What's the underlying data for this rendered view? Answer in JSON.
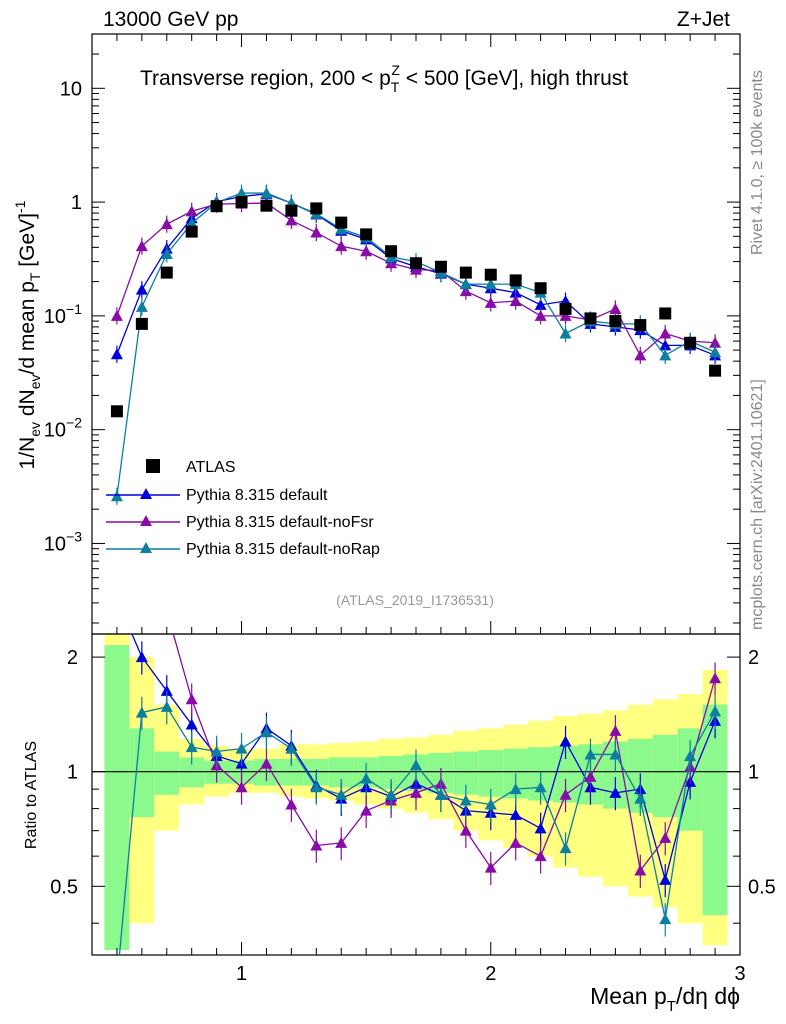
{
  "header": {
    "left": "13000 GeV pp",
    "right": "Z+Jet"
  },
  "side_labels": {
    "rivet": "Rivet 4.1.0, ≥ 100k events",
    "mcplots": "mcplots.cern.ch [arXiv:2401.10621]"
  },
  "analysis_id": "(ATLAS_2019_I1736531)",
  "title": {
    "pre": "Transverse region, 200 < p",
    "sub": "T",
    "sup": "Z",
    "post": " < 500 [GeV], high thrust"
  },
  "ylabel_main": {
    "p1": "1/N",
    "s1": "ev",
    "p2": " dN",
    "s2": "ev",
    "p3": "/d mean p",
    "s3": "T",
    "p4": " [GeV]",
    "sup": "-1"
  },
  "ylabel_ratio": "Ratio to ATLAS",
  "xlabel": {
    "p1": "Mean p",
    "sub": "T",
    "p2": "/dη dϕ"
  },
  "legend": [
    {
      "label": "ATLAS",
      "color": "#000000",
      "marker": "square"
    },
    {
      "label": "Pythia 8.315 default",
      "color": "#0000dd",
      "marker": "triangle"
    },
    {
      "label": "Pythia 8.315 default-noFsr",
      "color": "#8a0ca8",
      "marker": "triangle"
    },
    {
      "label": "Pythia 8.315 default-noRap",
      "color": "#0c7fa0",
      "marker": "triangle"
    }
  ],
  "chart_data": {
    "type": "scatter",
    "xlim": [
      0.4,
      3.0
    ],
    "ylim_main": [
      0.00016,
      30
    ],
    "ylim_ratio": [
      0.33,
      2.3
    ],
    "x_ticks": [
      "1",
      "2",
      "3"
    ],
    "y_ticks_main": [
      {
        "base": "10",
        "exp": "",
        "value": 10,
        "plain": "10"
      },
      {
        "base": "1",
        "exp": "",
        "value": 1,
        "plain": "1"
      },
      {
        "base": "10",
        "exp": "−1",
        "value": 0.1,
        "plain": ""
      },
      {
        "base": "10",
        "exp": "−2",
        "value": 0.01,
        "plain": ""
      },
      {
        "base": "10",
        "exp": "−3",
        "value": 0.001,
        "plain": ""
      }
    ],
    "y_ticks_ratio": [
      "0.5",
      "1",
      "2"
    ],
    "x": [
      0.5,
      0.6,
      0.7,
      0.8,
      0.9,
      1.0,
      1.1,
      1.2,
      1.3,
      1.4,
      1.5,
      1.6,
      1.7,
      1.8,
      1.9,
      2.0,
      2.1,
      2.2,
      2.3,
      2.4,
      2.5,
      2.6,
      2.7,
      2.8,
      2.9
    ],
    "atlas": [
      0.0145,
      0.085,
      0.24,
      0.55,
      0.92,
      1.0,
      0.93,
      0.84,
      0.88,
      0.66,
      0.52,
      0.37,
      0.29,
      0.27,
      0.24,
      0.23,
      0.205,
      0.175,
      0.115,
      0.095,
      0.09,
      0.083,
      0.105,
      0.058,
      0.033
    ],
    "series": [
      {
        "name": "Pythia 8.315 default",
        "values": [
          0.046,
          0.17,
          0.39,
          0.72,
          1.01,
          1.12,
          1.18,
          0.98,
          0.78,
          0.56,
          0.47,
          0.32,
          0.27,
          0.235,
          0.19,
          0.175,
          0.16,
          0.125,
          0.135,
          0.085,
          0.08,
          0.075,
          0.055,
          0.055,
          0.045
        ],
        "ratio": [
          2.85,
          2.0,
          1.63,
          1.33,
          1.1,
          1.05,
          1.3,
          1.17,
          0.92,
          0.85,
          0.91,
          0.86,
          0.93,
          0.87,
          0.79,
          0.78,
          0.77,
          0.71,
          1.2,
          0.91,
          0.88,
          0.9,
          0.52,
          0.94,
          1.36
        ]
      },
      {
        "name": "Pythia 8.315 default-noFsr",
        "values": [
          0.1,
          0.41,
          0.64,
          0.83,
          0.96,
          0.97,
          0.98,
          0.69,
          0.54,
          0.41,
          0.37,
          0.29,
          0.255,
          0.25,
          0.165,
          0.13,
          0.135,
          0.1,
          0.1,
          0.092,
          0.115,
          0.045,
          0.07,
          0.06,
          0.058
        ],
        "ratio": [
          6.2,
          4.8,
          2.65,
          1.55,
          1.04,
          0.91,
          1.05,
          0.82,
          0.64,
          0.65,
          0.79,
          0.84,
          0.88,
          0.93,
          0.7,
          0.56,
          0.65,
          0.6,
          0.87,
          0.97,
          1.28,
          0.55,
          0.67,
          1.03,
          1.76
        ]
      },
      {
        "name": "Pythia 8.315 default-noRap",
        "values": [
          0.0026,
          0.12,
          0.35,
          0.65,
          0.99,
          1.2,
          1.2,
          0.98,
          0.79,
          0.58,
          0.49,
          0.33,
          0.3,
          0.24,
          0.19,
          0.19,
          0.19,
          0.16,
          0.07,
          0.09,
          0.085,
          0.085,
          0.045,
          0.06,
          0.048
        ],
        "ratio": [
          0.18,
          1.43,
          1.48,
          1.16,
          1.13,
          1.15,
          1.27,
          1.15,
          0.91,
          0.87,
          0.96,
          0.87,
          1.04,
          0.87,
          0.84,
          0.82,
          0.9,
          0.91,
          0.63,
          1.11,
          1.11,
          0.85,
          0.41,
          1.1,
          1.44
        ]
      }
    ],
    "band_green": [
      [
        0.34,
        2.15
      ],
      [
        0.76,
        1.3
      ],
      [
        0.87,
        1.13
      ],
      [
        0.91,
        1.09
      ],
      [
        0.93,
        1.07
      ],
      [
        0.93,
        1.07
      ],
      [
        0.92,
        1.08
      ],
      [
        0.92,
        1.08
      ],
      [
        0.92,
        1.08
      ],
      [
        0.91,
        1.09
      ],
      [
        0.91,
        1.09
      ],
      [
        0.9,
        1.1
      ],
      [
        0.89,
        1.11
      ],
      [
        0.88,
        1.12
      ],
      [
        0.87,
        1.13
      ],
      [
        0.86,
        1.14
      ],
      [
        0.85,
        1.15
      ],
      [
        0.84,
        1.16
      ],
      [
        0.83,
        1.17
      ],
      [
        0.82,
        1.18
      ],
      [
        0.8,
        1.2
      ],
      [
        0.78,
        1.22
      ],
      [
        0.76,
        1.25
      ],
      [
        0.7,
        1.3
      ],
      [
        0.42,
        1.5
      ]
    ],
    "band_yellow": [
      [
        0.34,
        2.3
      ],
      [
        0.4,
        2.0
      ],
      [
        0.7,
        1.5
      ],
      [
        0.82,
        1.22
      ],
      [
        0.86,
        1.17
      ],
      [
        0.88,
        1.15
      ],
      [
        0.88,
        1.15
      ],
      [
        0.86,
        1.18
      ],
      [
        0.85,
        1.18
      ],
      [
        0.84,
        1.19
      ],
      [
        0.82,
        1.2
      ],
      [
        0.8,
        1.22
      ],
      [
        0.78,
        1.23
      ],
      [
        0.75,
        1.25
      ],
      [
        0.7,
        1.28
      ],
      [
        0.66,
        1.3
      ],
      [
        0.63,
        1.33
      ],
      [
        0.6,
        1.36
      ],
      [
        0.56,
        1.4
      ],
      [
        0.53,
        1.42
      ],
      [
        0.5,
        1.45
      ],
      [
        0.47,
        1.5
      ],
      [
        0.44,
        1.55
      ],
      [
        0.4,
        1.6
      ],
      [
        0.35,
        1.85
      ]
    ]
  }
}
